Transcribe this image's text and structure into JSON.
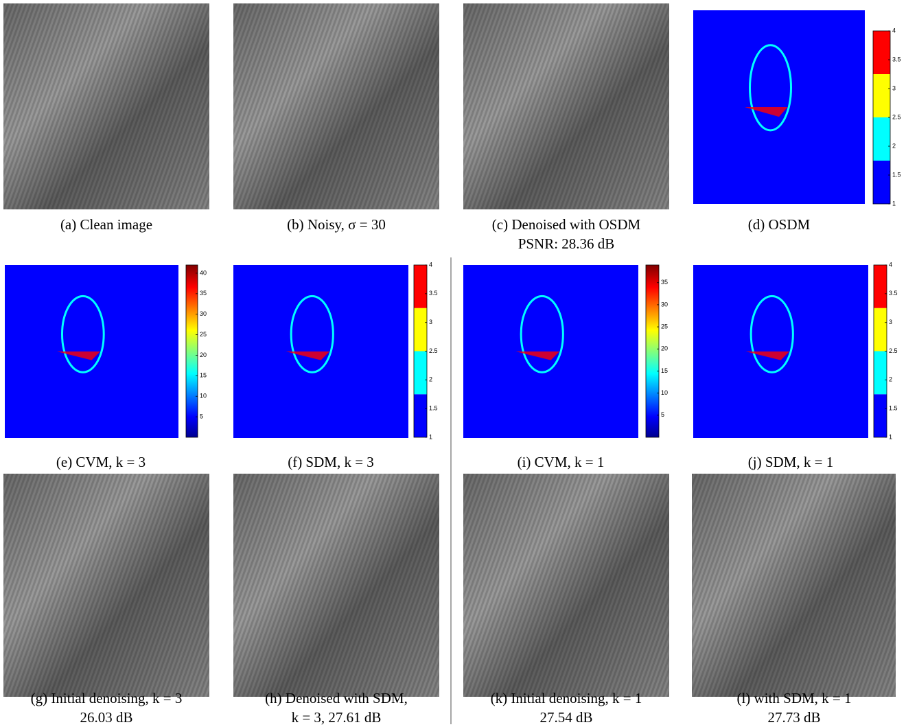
{
  "panels": [
    {
      "caption": [
        "(a) Clean image"
      ]
    },
    {
      "caption": [
        "(b) Noisy, σ = 30"
      ]
    },
    {
      "caption": [
        "(c) Denoised with OSDM",
        "PSNR: 28.36 dB"
      ]
    },
    {
      "caption": [
        "(d) OSDM"
      ],
      "colorbar": {
        "lim": [
          1,
          4
        ],
        "ticks": [
          1,
          1.5,
          2,
          2.5,
          3,
          3.5,
          4
        ]
      }
    },
    {
      "caption": [
        "(e) CVM, k = 3"
      ],
      "colorbar": {
        "lim": [
          0,
          42
        ],
        "ticks": [
          5,
          10,
          15,
          20,
          25,
          30,
          35,
          40
        ]
      }
    },
    {
      "caption": [
        "(f) SDM, k = 3"
      ],
      "colorbar": {
        "lim": [
          1,
          4
        ],
        "ticks": [
          1,
          1.5,
          2,
          2.5,
          3,
          3.5,
          4
        ]
      }
    },
    {
      "caption": [
        "(i) CVM, k = 1"
      ],
      "colorbar": {
        "lim": [
          0,
          39
        ],
        "ticks": [
          5,
          10,
          15,
          20,
          25,
          30,
          35
        ]
      }
    },
    {
      "caption": [
        "(j) SDM, k = 1"
      ],
      "colorbar": {
        "lim": [
          1,
          4
        ],
        "ticks": [
          1,
          1.5,
          2,
          2.5,
          3,
          3.5,
          4
        ]
      }
    },
    {
      "caption": [
        "(g) Initial denoising, k = 3",
        "26.03 dB"
      ]
    },
    {
      "caption": [
        "(h) Denoised with SDM,",
        "k = 3, 27.61 dB"
      ]
    },
    {
      "caption": [
        "(k) Initial denoising, k = 1",
        "27.54 dB"
      ]
    },
    {
      "caption": [
        "(l) with SDM, k = 1",
        "27.73 dB"
      ]
    }
  ]
}
